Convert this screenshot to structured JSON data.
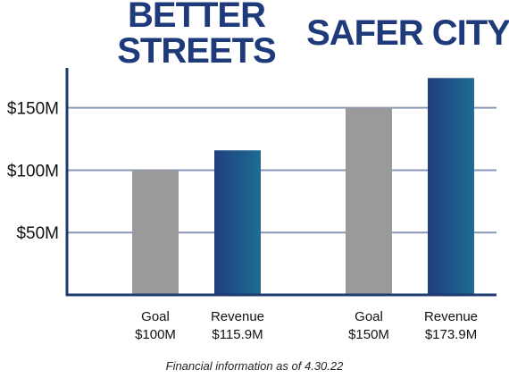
{
  "chart_data": {
    "type": "bar",
    "ylim": [
      0,
      182
    ],
    "grid": true,
    "yticks": [
      {
        "value": 50,
        "label": "$50M"
      },
      {
        "value": 100,
        "label": "$100M"
      },
      {
        "value": 150,
        "label": "$150M"
      }
    ],
    "groups": [
      {
        "title_lines": [
          "BETTER",
          "STREETS"
        ],
        "bars": [
          {
            "category": "Goal",
            "value_label": "$100M",
            "value": 100
          },
          {
            "category": "Revenue",
            "value_label": "$115.9M",
            "value": 115.9
          }
        ]
      },
      {
        "title_lines": [
          "SAFER CITY"
        ],
        "bars": [
          {
            "category": "Goal",
            "value_label": "$150M",
            "value": 150
          },
          {
            "category": "Revenue",
            "value_label": "$173.9M",
            "value": 173.9
          }
        ]
      }
    ],
    "footnote": "Financial information as of 4.30.22"
  },
  "colors": {
    "goal": "#9a9a9a",
    "revenue_start": "#1f3f7e",
    "revenue_end": "#1f6c93",
    "axis": "#1f3a6e",
    "grid": "#8a96b8",
    "title": "#1f3a7a"
  }
}
